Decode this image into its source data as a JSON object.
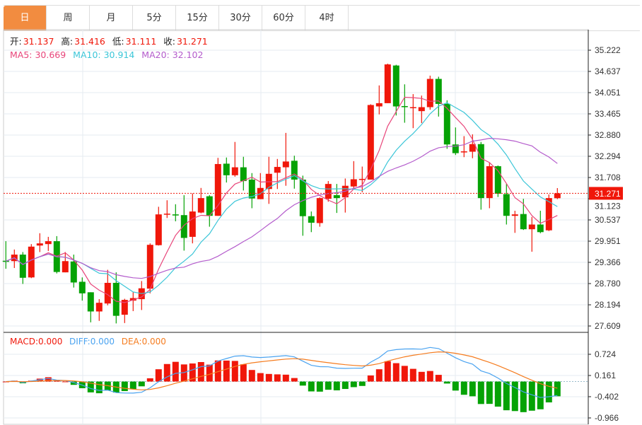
{
  "tabs": [
    {
      "label": "日",
      "active": true
    },
    {
      "label": "周"
    },
    {
      "label": "月"
    },
    {
      "label": "5分"
    },
    {
      "label": "15分"
    },
    {
      "label": "30分"
    },
    {
      "label": "60分"
    },
    {
      "label": "4时"
    }
  ],
  "ohlc_legend": {
    "open_label": "开:",
    "open": "31.137",
    "high_label": "高:",
    "high": "31.416",
    "low_label": "低:",
    "low": "31.111",
    "close_label": "收:",
    "close": "31.271"
  },
  "ma_legend": {
    "ma5": "MA5: 30.669",
    "ma10": "MA10: 30.914",
    "ma20": "MA20: 32.102"
  },
  "macd_legend": {
    "macd": "MACD:0.000",
    "diff": "DIFF:0.000",
    "dea": "DEA:0.000"
  },
  "current_price_label": "31.271",
  "colors": {
    "up": "#f0170a",
    "down": "#05a205",
    "ma5": "#e8457a",
    "ma10": "#3cc6d8",
    "ma20": "#b45ccc",
    "diff": "#4aa3f0",
    "dea": "#f57c1f",
    "tab_active": "#f28c40"
  },
  "chart_data": {
    "type": "candlestick",
    "price_axis_ticks": [
      "35.222",
      "34.637",
      "34.051",
      "33.465",
      "32.880",
      "32.294",
      "31.708",
      "31.123",
      "30.537",
      "29.951",
      "29.366",
      "28.780",
      "28.194",
      "27.609"
    ],
    "price_range": [
      27.609,
      35.222
    ],
    "macd_axis_ticks": [
      "0.724",
      "0.161",
      "-0.402",
      "-0.966"
    ],
    "macd_range": [
      -0.966,
      0.724
    ],
    "candles": [
      [
        29.41,
        29.4,
        29.95,
        29.19
      ],
      [
        29.4,
        29.58,
        29.72,
        29.21
      ],
      [
        29.58,
        28.94,
        29.65,
        28.77
      ],
      [
        28.95,
        29.8,
        29.87,
        28.93
      ],
      [
        29.83,
        29.89,
        30.17,
        29.65
      ],
      [
        29.87,
        29.95,
        30.07,
        29.68
      ],
      [
        29.95,
        29.1,
        30.09,
        29.06
      ],
      [
        29.09,
        29.4,
        29.65,
        29.09
      ],
      [
        29.39,
        28.81,
        29.58,
        28.67
      ],
      [
        28.83,
        28.51,
        28.95,
        28.31
      ],
      [
        28.54,
        28.01,
        28.54,
        27.71
      ],
      [
        28.01,
        28.25,
        28.35,
        27.75
      ],
      [
        28.23,
        28.8,
        29.16,
        28.18
      ],
      [
        28.8,
        27.89,
        29.09,
        27.68
      ],
      [
        27.92,
        28.33,
        28.36,
        27.69
      ],
      [
        28.31,
        28.38,
        28.54,
        28.02
      ],
      [
        28.35,
        28.65,
        28.85,
        28.05
      ],
      [
        28.64,
        29.85,
        29.89,
        28.51
      ],
      [
        29.84,
        30.69,
        30.9,
        29.83
      ],
      [
        30.69,
        30.71,
        31.08,
        30.59
      ],
      [
        30.69,
        30.66,
        30.97,
        30.5
      ],
      [
        30.67,
        30.04,
        31.22,
        29.69
      ],
      [
        30.07,
        30.77,
        31.27,
        29.89
      ],
      [
        30.74,
        31.14,
        31.42,
        30.72
      ],
      [
        31.19,
        30.65,
        31.22,
        30.35
      ],
      [
        30.65,
        32.08,
        32.25,
        30.65
      ],
      [
        32.09,
        31.77,
        32.26,
        31.57
      ],
      [
        31.77,
        31.99,
        32.69,
        31.73
      ],
      [
        31.99,
        31.61,
        32.28,
        31.35
      ],
      [
        31.65,
        31.13,
        31.83,
        30.86
      ],
      [
        31.11,
        31.42,
        31.83,
        31.11
      ],
      [
        31.39,
        31.81,
        32.28,
        30.98
      ],
      [
        31.84,
        32.0,
        32.22,
        31.39
      ],
      [
        31.99,
        32.15,
        32.94,
        31.48
      ],
      [
        32.17,
        31.65,
        32.31,
        31.4
      ],
      [
        31.65,
        30.64,
        31.76,
        30.1
      ],
      [
        30.64,
        30.46,
        30.77,
        30.2
      ],
      [
        30.45,
        31.14,
        31.16,
        30.35
      ],
      [
        31.12,
        31.53,
        31.61,
        31.04
      ],
      [
        31.22,
        31.14,
        31.53,
        30.73
      ],
      [
        31.16,
        31.48,
        31.68,
        30.74
      ],
      [
        31.46,
        31.66,
        32.16,
        31.4
      ],
      [
        31.65,
        31.67,
        32.01,
        31.3
      ],
      [
        31.65,
        33.71,
        33.73,
        31.65
      ],
      [
        33.67,
        33.76,
        34.25,
        33.45
      ],
      [
        33.76,
        34.83,
        34.85,
        33.76
      ],
      [
        34.8,
        33.67,
        34.82,
        33.42
      ],
      [
        33.68,
        33.65,
        34.28,
        33.22
      ],
      [
        33.63,
        33.65,
        34.01,
        33.07
      ],
      [
        33.54,
        33.65,
        33.97,
        33.21
      ],
      [
        33.65,
        34.43,
        34.52,
        33.58
      ],
      [
        34.43,
        33.74,
        34.49,
        33.39
      ],
      [
        33.74,
        32.62,
        33.84,
        32.5
      ],
      [
        32.62,
        32.38,
        33.09,
        32.33
      ],
      [
        32.41,
        32.43,
        32.85,
        32.27
      ],
      [
        32.42,
        32.63,
        32.9,
        32.24
      ],
      [
        32.63,
        31.14,
        32.69,
        30.82
      ],
      [
        31.14,
        32.02,
        32.12,
        30.86
      ],
      [
        32.02,
        31.26,
        32.04,
        31.17
      ],
      [
        31.25,
        30.65,
        31.53,
        30.41
      ],
      [
        30.65,
        30.69,
        30.79,
        30.18
      ],
      [
        30.7,
        30.28,
        31.12,
        30.26
      ],
      [
        30.28,
        30.41,
        30.62,
        29.66
      ],
      [
        30.41,
        30.2,
        30.79,
        30.17
      ],
      [
        30.25,
        31.14,
        31.24,
        30.23
      ],
      [
        31.137,
        31.271,
        31.416,
        31.111
      ]
    ],
    "candle_fields": [
      "open",
      "close",
      "high",
      "low"
    ],
    "current_price": 31.271,
    "ma_periods": [
      5,
      10,
      20
    ],
    "macd_params": [
      12,
      26,
      9
    ]
  }
}
